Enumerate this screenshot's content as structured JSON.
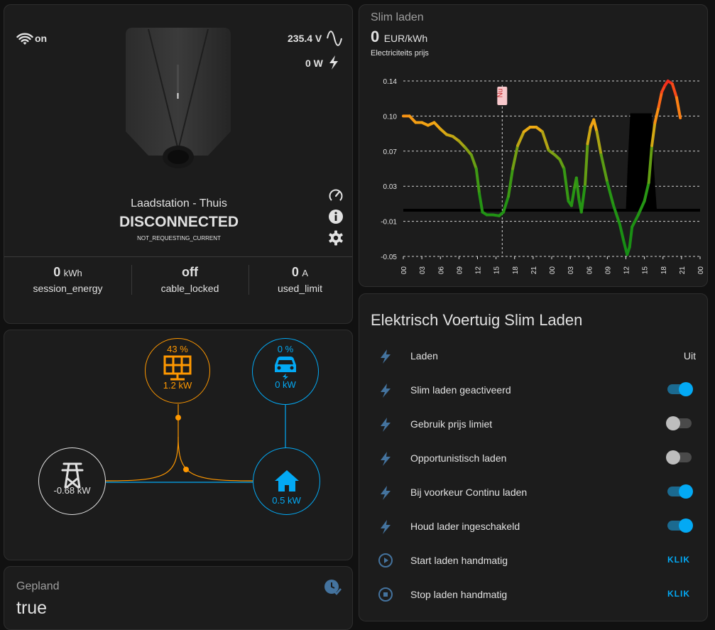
{
  "charger": {
    "wifi_status": "on",
    "voltage": "235.4 V",
    "power": "0 W",
    "name": "Laadstation - Thuis",
    "status": "DISCONNECTED",
    "substatus": "NOT_REQUESTING_CURRENT",
    "stats": [
      {
        "value": "0",
        "unit": "kWh",
        "name": "session_energy"
      },
      {
        "value": "off",
        "unit": "",
        "name": "cable_locked"
      },
      {
        "value": "0",
        "unit": "A",
        "name": "used_limit"
      }
    ]
  },
  "energy": {
    "solar": {
      "percent": "43 %",
      "power": "1.2 kW",
      "color": "#ff9800"
    },
    "ev": {
      "percent": "0 %",
      "power": "0 kW",
      "color": "#03a9f4"
    },
    "grid": {
      "power": "-0.68 kW",
      "color": "#e1e1e1"
    },
    "home": {
      "power": "0.5 kW",
      "color": "#03a9f4"
    }
  },
  "gepland": {
    "title": "Gepland",
    "value": "true"
  },
  "price_chart": {
    "title": "Slim laden",
    "value": "0",
    "unit": "EUR/kWh",
    "subtitle": "Electriciteits prijs",
    "now_label": "Nu"
  },
  "chart_data": {
    "type": "line",
    "title": "Slim laden",
    "ylabel": "",
    "xlabel": "",
    "ylim": [
      -0.05,
      0.14
    ],
    "y_ticks": [
      "0.14",
      "0.10",
      "0.07",
      "0.03",
      "-0.01",
      "-0.05"
    ],
    "x_ticks": [
      "00",
      "03",
      "06",
      "09",
      "12",
      "15",
      "18",
      "21",
      "00",
      "03",
      "06",
      "09",
      "12",
      "15",
      "18",
      "21",
      "00"
    ],
    "x_range_hours": [
      0,
      48
    ],
    "now_hour": 16,
    "series": [
      {
        "values": [
          [
            0,
            0.102
          ],
          [
            1,
            0.102
          ],
          [
            2,
            0.095
          ],
          [
            3,
            0.095
          ],
          [
            4,
            0.092
          ],
          [
            5,
            0.095
          ],
          [
            6,
            0.088
          ],
          [
            7,
            0.082
          ],
          [
            8,
            0.08
          ],
          [
            9,
            0.075
          ],
          [
            10,
            0.068
          ],
          [
            11,
            0.06
          ],
          [
            11.8,
            0.045
          ],
          [
            12.3,
            0.018
          ],
          [
            12.8,
            -0.002
          ],
          [
            13.5,
            -0.005
          ],
          [
            14.5,
            -0.005
          ],
          [
            15.5,
            -0.006
          ],
          [
            16.2,
            -0.002
          ],
          [
            17,
            0.015
          ],
          [
            17.7,
            0.045
          ],
          [
            18.5,
            0.07
          ],
          [
            19.5,
            0.085
          ],
          [
            20.5,
            0.09
          ],
          [
            21.5,
            0.09
          ],
          [
            22.5,
            0.085
          ],
          [
            23.5,
            0.065
          ],
          [
            24.5,
            0.06
          ],
          [
            25.3,
            0.055
          ],
          [
            26,
            0.045
          ],
          [
            26.7,
            0.01
          ],
          [
            27.2,
            0.005
          ],
          [
            27.7,
            0.025
          ],
          [
            28,
            0.035
          ],
          [
            28.4,
            0.012
          ],
          [
            28.8,
            -0.002
          ],
          [
            29.4,
            0.028
          ],
          [
            29.8,
            0.072
          ],
          [
            30.3,
            0.09
          ],
          [
            30.8,
            0.098
          ],
          [
            31.3,
            0.085
          ],
          [
            32,
            0.06
          ],
          [
            33,
            0.03
          ],
          [
            34,
            0.005
          ],
          [
            35,
            -0.015
          ],
          [
            35.7,
            -0.035
          ],
          [
            36.2,
            -0.048
          ],
          [
            36.6,
            -0.04
          ],
          [
            37,
            -0.018
          ],
          [
            38,
            -0.005
          ],
          [
            39,
            0.01
          ],
          [
            39.7,
            0.03
          ],
          [
            40.2,
            0.07
          ],
          [
            40.7,
            0.095
          ],
          [
            41.3,
            0.112
          ],
          [
            41.8,
            0.128
          ],
          [
            42.3,
            0.135
          ],
          [
            42.8,
            0.14
          ],
          [
            43.5,
            0.137
          ],
          [
            44.2,
            0.122
          ],
          [
            44.8,
            0.1
          ]
        ]
      },
      {
        "name": "",
        "type": "area",
        "color": "#000000",
        "values": [
          [
            36.0,
            0.0
          ],
          [
            36.3,
            0.05
          ],
          [
            36.7,
            0.105
          ],
          [
            40.2,
            0.105
          ],
          [
            40.5,
            0.05
          ],
          [
            41,
            0.0
          ]
        ]
      },
      {
        "type": "baseline",
        "color": "#000000",
        "values": [
          [
            0,
            0.0
          ],
          [
            48,
            0.0
          ]
        ]
      }
    ]
  },
  "smart_charging": {
    "title": "Elektrisch Voertuig Slim Laden",
    "rows": [
      {
        "label": "Laden",
        "type": "value",
        "value": "Uit",
        "icon": "flash-icon"
      },
      {
        "label": "Slim laden geactiveerd",
        "type": "toggle",
        "on": true,
        "icon": "flash-icon"
      },
      {
        "label": "Gebruik prijs limiet",
        "type": "toggle",
        "on": false,
        "icon": "flash-icon"
      },
      {
        "label": "Opportunistisch laden",
        "type": "toggle",
        "on": false,
        "icon": "flash-icon"
      },
      {
        "label": "Bij voorkeur Continu laden",
        "type": "toggle",
        "on": true,
        "icon": "flash-icon"
      },
      {
        "label": "Houd lader ingeschakeld",
        "type": "toggle",
        "on": true,
        "icon": "flash-icon"
      },
      {
        "label": "Start laden handmatig",
        "type": "button",
        "button": "KLIK",
        "icon": "play-circle-icon"
      },
      {
        "label": "Stop laden handmatig",
        "type": "button",
        "button": "KLIK",
        "icon": "stop-circle-icon"
      }
    ]
  }
}
